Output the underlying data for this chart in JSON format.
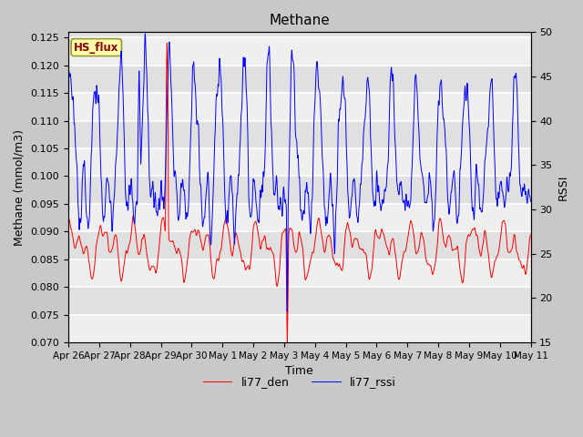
{
  "title": "Methane",
  "ylabel_left": "Methane (mmol/m3)",
  "ylabel_right": "RSSI",
  "xlabel": "Time",
  "ylim_left": [
    0.07,
    0.126
  ],
  "ylim_right": [
    15,
    50
  ],
  "yticks_left": [
    0.07,
    0.075,
    0.08,
    0.085,
    0.09,
    0.095,
    0.1,
    0.105,
    0.11,
    0.115,
    0.12,
    0.125
  ],
  "yticks_right": [
    15,
    20,
    25,
    30,
    35,
    40,
    45,
    50
  ],
  "xtick_labels": [
    "Apr 26",
    "Apr 27",
    "Apr 28",
    "Apr 29",
    "Apr 30",
    "May 1",
    "May 2",
    "May 3",
    "May 4",
    "May 5",
    "May 6",
    "May 7",
    "May 8",
    "May 9",
    "May 10",
    "May 11"
  ],
  "legend_labels": [
    "li77_den",
    "li77_rssi"
  ],
  "line_colors": [
    "red",
    "blue"
  ],
  "fig_facecolor": "#c8c8c8",
  "plot_facecolor": "#e0e0e0",
  "annotation_text": "HS_flux",
  "annotation_bg": "#ffffaa",
  "annotation_border": "#999933",
  "grid_color": "#ffffff",
  "title_fontsize": 11,
  "label_fontsize": 9,
  "tick_fontsize": 8
}
